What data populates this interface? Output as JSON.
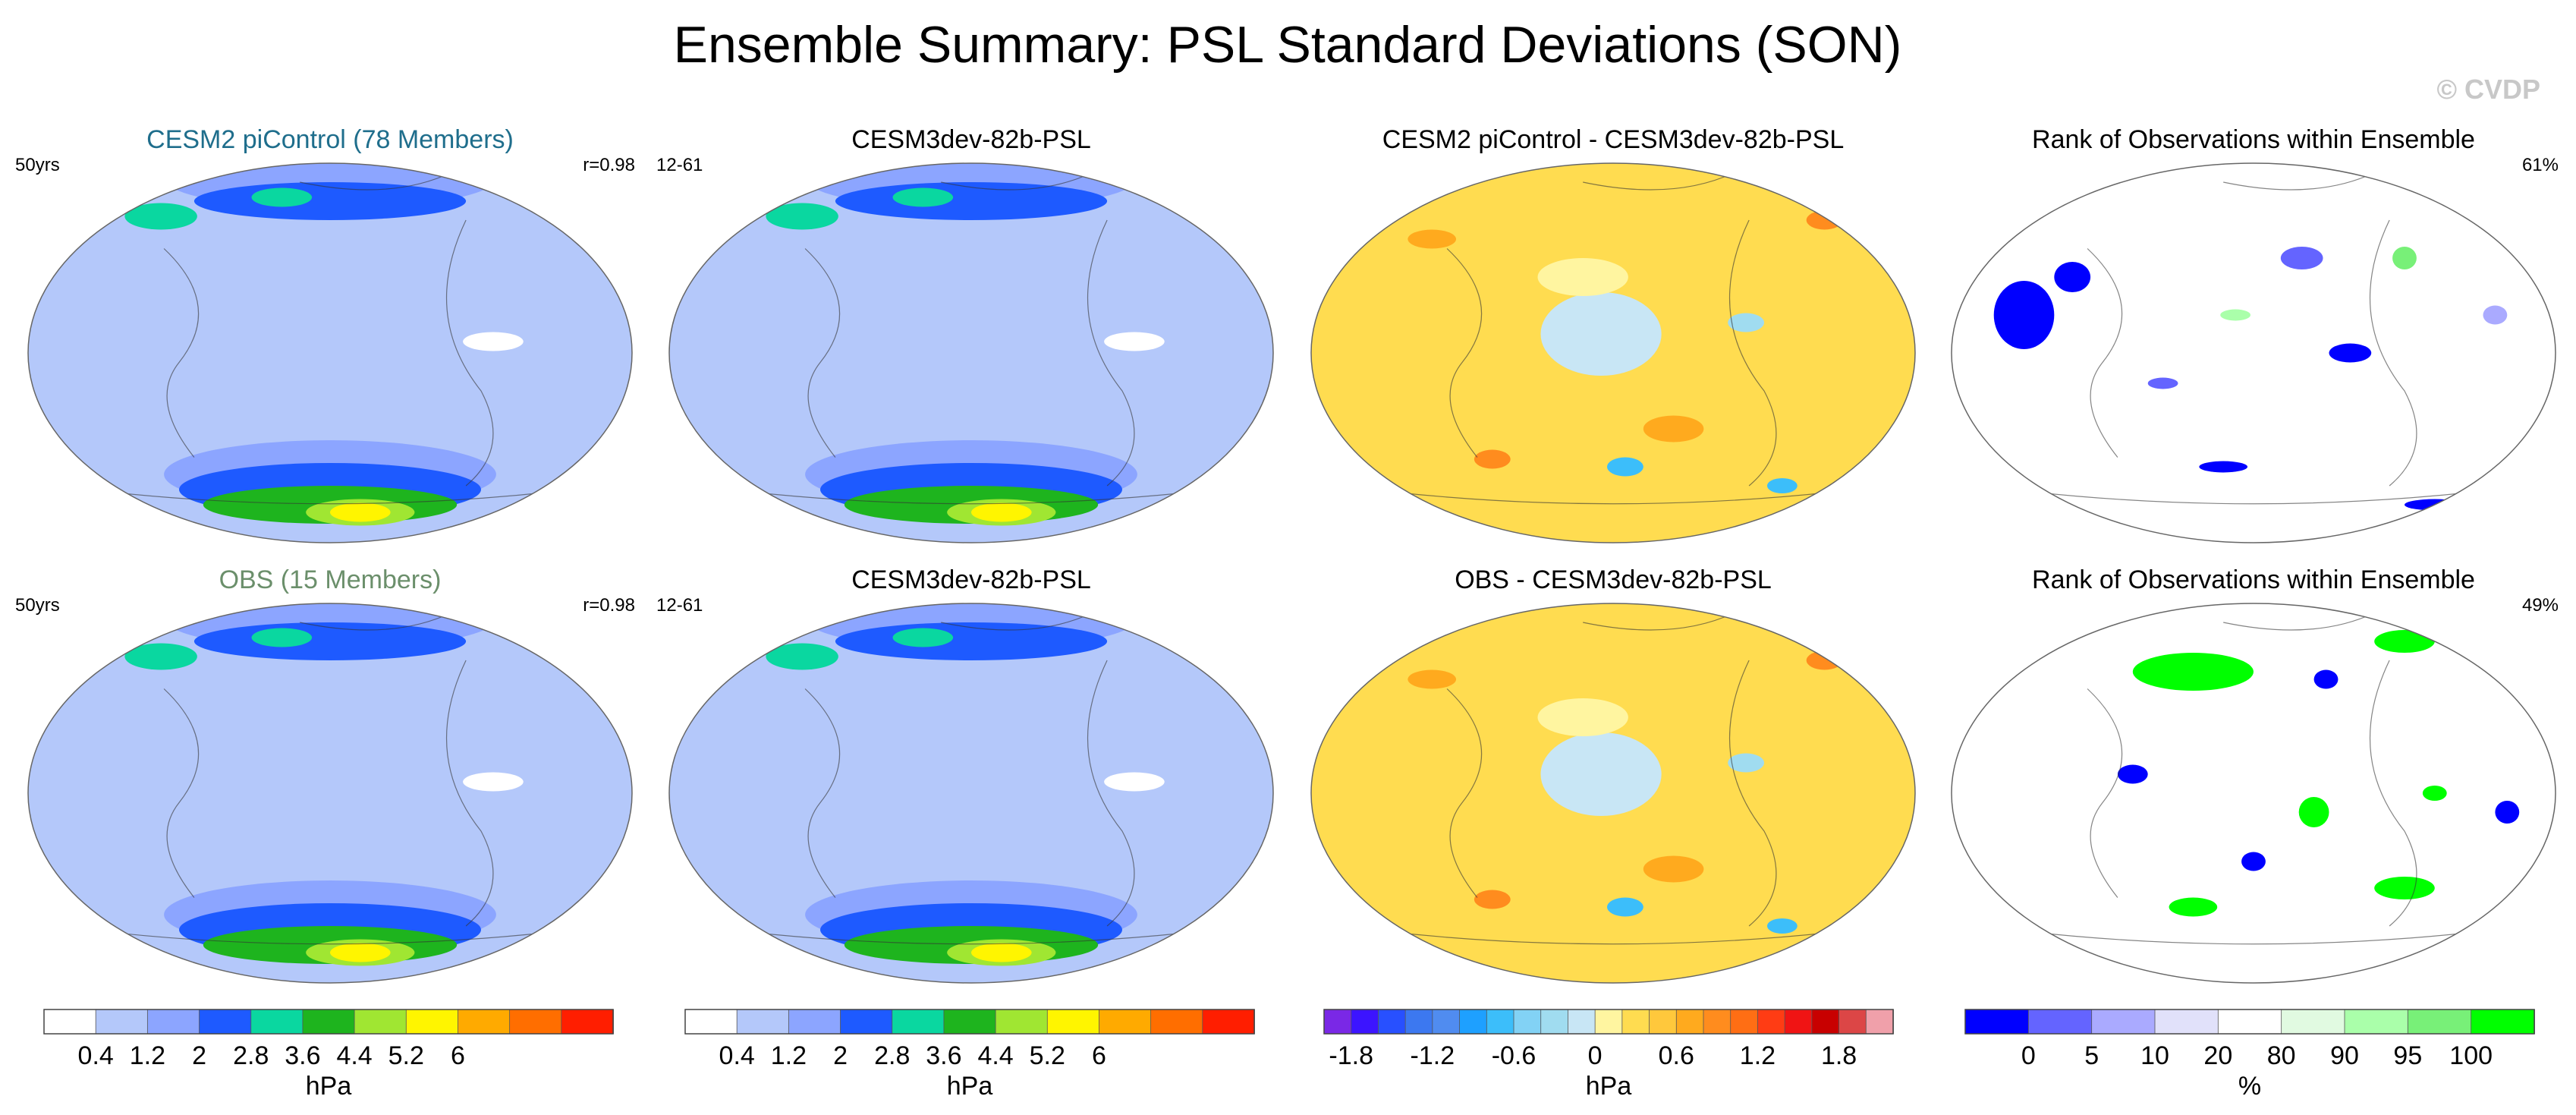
{
  "figure": {
    "title": "Ensemble Summary: PSL Standard Deviations (SON)",
    "watermark": "© CVDP"
  },
  "chart_data": [
    {
      "type": "heatmap",
      "panel": "r1c1",
      "title": "CESM2 piControl (78 Members)",
      "title_color": "#1f6e8c",
      "left_label": "50yrs",
      "right_label": "r=0.98",
      "variable": "PSL standard deviation",
      "units": "hPa",
      "projection": "Robinson (global, Pacific-centred)",
      "colorbar": "c1"
    },
    {
      "type": "heatmap",
      "panel": "r1c2",
      "title": "CESM3dev-82b-PSL",
      "title_color": "#000000",
      "left_label": "12-61",
      "right_label": "",
      "variable": "PSL standard deviation",
      "units": "hPa",
      "projection": "Robinson (global, Pacific-centred)",
      "colorbar": "c2"
    },
    {
      "type": "heatmap",
      "panel": "r1c3",
      "title": "CESM2 piControl - CESM3dev-82b-PSL",
      "title_color": "#000000",
      "left_label": "",
      "right_label": "",
      "variable": "PSL standard deviation difference",
      "units": "hPa",
      "projection": "Robinson (global, Pacific-centred)",
      "colorbar": "c3"
    },
    {
      "type": "heatmap",
      "panel": "r1c4",
      "title": "Rank of Observations within Ensemble",
      "title_color": "#000000",
      "left_label": "",
      "right_label": "61%",
      "variable": "rank of observations within ensemble",
      "units": "%",
      "projection": "Robinson (global, Pacific-centred)",
      "colorbar": "c4"
    },
    {
      "type": "heatmap",
      "panel": "r2c1",
      "title": "OBS (15 Members)",
      "title_color": "#6b8f6b",
      "left_label": "50yrs",
      "right_label": "r=0.98",
      "variable": "PSL standard deviation",
      "units": "hPa",
      "projection": "Robinson (global, Pacific-centred)",
      "colorbar": "c1"
    },
    {
      "type": "heatmap",
      "panel": "r2c2",
      "title": "CESM3dev-82b-PSL",
      "title_color": "#000000",
      "left_label": "12-61",
      "right_label": "",
      "variable": "PSL standard deviation",
      "units": "hPa",
      "projection": "Robinson (global, Pacific-centred)",
      "colorbar": "c2"
    },
    {
      "type": "heatmap",
      "panel": "r2c3",
      "title": "OBS - CESM3dev-82b-PSL",
      "title_color": "#000000",
      "left_label": "",
      "right_label": "",
      "variable": "PSL standard deviation difference",
      "units": "hPa",
      "projection": "Robinson (global, Pacific-centred)",
      "colorbar": "c3"
    },
    {
      "type": "heatmap",
      "panel": "r2c4",
      "title": "Rank of Observations within Ensemble",
      "title_color": "#000000",
      "left_label": "",
      "right_label": "49%",
      "variable": "rank of observations within ensemble",
      "units": "%",
      "projection": "Robinson (global, Pacific-centred)",
      "colorbar": "c4"
    }
  ],
  "colorbars": [
    {
      "id": "c1",
      "units": "hPa",
      "colors": [
        "#ffffff",
        "#b4c8fa",
        "#8ca5ff",
        "#1e5aff",
        "#0ad7a0",
        "#1eb41e",
        "#a0e632",
        "#fff500",
        "#ffaa00",
        "#ff6e00",
        "#ff1e00"
      ],
      "tick_labels": [
        "0.4",
        "1.2",
        "2",
        "2.8",
        "3.6",
        "4.4",
        "5.2",
        "6"
      ],
      "tick_box_index": [
        1,
        2,
        3,
        4,
        5,
        6,
        7,
        8
      ]
    },
    {
      "id": "c2",
      "units": "hPa",
      "colors": [
        "#ffffff",
        "#b4c8fa",
        "#8ca5ff",
        "#1e5aff",
        "#0ad7a0",
        "#1eb41e",
        "#a0e632",
        "#fff500",
        "#ffaa00",
        "#ff6e00",
        "#ff1e00"
      ],
      "tick_labels": [
        "0.4",
        "1.2",
        "2",
        "2.8",
        "3.6",
        "4.4",
        "5.2",
        "6"
      ],
      "tick_box_index": [
        1,
        2,
        3,
        4,
        5,
        6,
        7,
        8
      ]
    },
    {
      "id": "c3",
      "units": "hPa",
      "colors": [
        "#7a28e6",
        "#3c14ff",
        "#2850ff",
        "#3c78f0",
        "#508cf0",
        "#1ea0ff",
        "#3cbefa",
        "#82d2f5",
        "#a0dcf0",
        "#c8e6f5",
        "#fff5a0",
        "#ffdc50",
        "#ffc83c",
        "#ffaa1e",
        "#ff8c1e",
        "#ff6e14",
        "#ff3c14",
        "#f01414",
        "#c80000",
        "#dc4646",
        "#f0a0aa"
      ],
      "tick_labels": [
        "-1.8",
        "-1.2",
        "-0.6",
        "0",
        "0.6",
        "1.2",
        "1.8"
      ],
      "tick_box_index": [
        1,
        4,
        7,
        10,
        13,
        16,
        19
      ]
    },
    {
      "id": "c4",
      "units": "%",
      "colors": [
        "#0000ff",
        "#6464ff",
        "#aaaaff",
        "#e1e1fa",
        "#ffffff",
        "#e1fae1",
        "#aaffaa",
        "#78f078",
        "#00ff00"
      ],
      "tick_labels": [
        "0",
        "5",
        "10",
        "20",
        "80",
        "90",
        "95",
        "100"
      ],
      "tick_box_index": [
        1,
        2,
        3,
        4,
        5,
        6,
        7,
        8
      ]
    }
  ]
}
